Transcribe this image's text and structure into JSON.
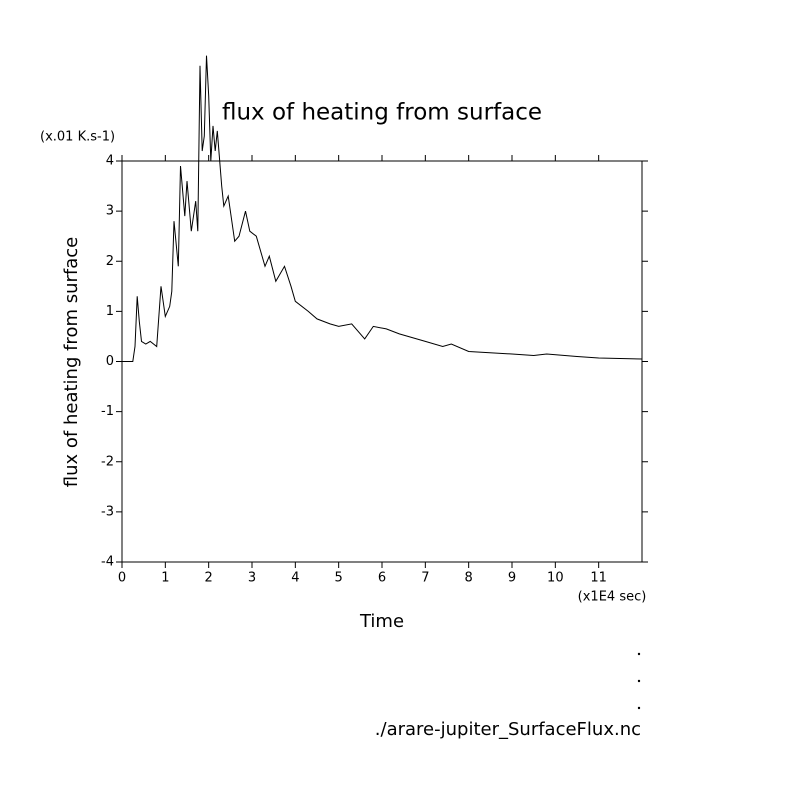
{
  "chart_data": {
    "type": "line",
    "title": "flux of heating from surface",
    "y_unit": "(x.01 K.s-1)",
    "y_label": "flux of heating from surface",
    "x_label": "Time",
    "x_unit": "(x1E4 sec)",
    "footer": "./arare-jupiter_SurfaceFlux.nc",
    "x": [
      0,
      0.25,
      0.3,
      0.35,
      0.4,
      0.45,
      0.55,
      0.65,
      0.8,
      0.9,
      1.0,
      1.1,
      1.15,
      1.2,
      1.3,
      1.35,
      1.45,
      1.5,
      1.6,
      1.7,
      1.75,
      1.8,
      1.85,
      1.9,
      1.95,
      2.0,
      2.05,
      2.1,
      2.15,
      2.2,
      2.3,
      2.35,
      2.45,
      2.6,
      2.7,
      2.85,
      2.95,
      3.1,
      3.3,
      3.4,
      3.55,
      3.75,
      3.9,
      4.0,
      4.3,
      4.5,
      4.8,
      5.0,
      5.3,
      5.6,
      5.8,
      6.1,
      6.4,
      7.0,
      7.4,
      7.6,
      8.0,
      9.0,
      9.5,
      9.8,
      10.5,
      11.0,
      12.0
    ],
    "series": [
      {
        "color": "#000000",
        "values": [
          0,
          0,
          0.3,
          1.3,
          0.8,
          0.4,
          0.35,
          0.4,
          0.3,
          1.5,
          0.9,
          1.1,
          1.4,
          2.8,
          1.9,
          3.9,
          2.9,
          3.6,
          2.6,
          3.2,
          2.6,
          5.9,
          4.2,
          4.5,
          6.1,
          5.3,
          4.0,
          4.7,
          4.2,
          4.6,
          3.5,
          3.1,
          3.3,
          2.4,
          2.5,
          3.0,
          2.6,
          2.5,
          1.9,
          2.1,
          1.6,
          1.9,
          1.5,
          1.2,
          1.0,
          0.85,
          0.75,
          0.7,
          0.75,
          0.45,
          0.7,
          0.65,
          0.55,
          0.4,
          0.3,
          0.35,
          0.2,
          0.15,
          0.12,
          0.15,
          0.1,
          0.07,
          0.05
        ]
      }
    ],
    "xlim": [
      0,
      12
    ],
    "xticks": [
      0,
      1,
      2,
      3,
      4,
      5,
      6,
      7,
      8,
      9,
      10,
      11
    ],
    "ylim": [
      -4,
      4
    ],
    "yticks": [
      -4,
      -3,
      -2,
      -1,
      0,
      1,
      2,
      3,
      4
    ]
  }
}
